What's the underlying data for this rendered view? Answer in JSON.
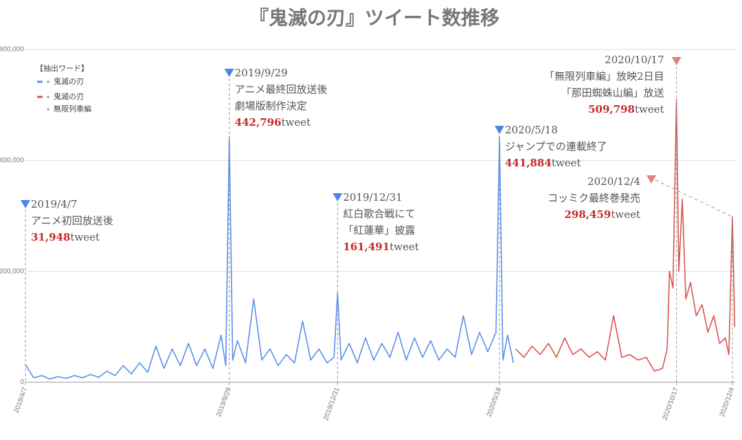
{
  "chart_data": {
    "type": "line",
    "title": "『鬼滅の刃』ツイート数推移",
    "legend_title": "【抽出ワード】",
    "xlim": [
      "2019/4/7",
      "2020/12/4"
    ],
    "xticks": [
      "2019/4/7",
      "2019/9/29",
      "2019/12/31",
      "2020/5/18",
      "2020/10/17",
      "2020/12/4"
    ],
    "ylim": [
      0,
      600000
    ],
    "yticks": [
      0,
      {
        "value": 200000,
        "label": "200,000"
      },
      {
        "value": 400000,
        "label": "400,000"
      },
      {
        "value": 600000,
        "label": "600,000"
      }
    ],
    "grid": true,
    "series": [
      {
        "name": "鬼滅の刃",
        "color": "#5b8ee6",
        "x": [
          "2019/4/7",
          "2019/4/14",
          "2019/4/21",
          "2019/4/28",
          "2019/5/5",
          "2019/5/12",
          "2019/5/19",
          "2019/5/26",
          "2019/6/2",
          "2019/6/9",
          "2019/6/16",
          "2019/6/23",
          "2019/6/30",
          "2019/7/7",
          "2019/7/14",
          "2019/7/21",
          "2019/7/28",
          "2019/8/4",
          "2019/8/11",
          "2019/8/18",
          "2019/8/25",
          "2019/9/1",
          "2019/9/8",
          "2019/9/15",
          "2019/9/22",
          "2019/9/26",
          "2019/9/29",
          "2019/10/2",
          "2019/10/6",
          "2019/10/13",
          "2019/10/20",
          "2019/10/27",
          "2019/11/3",
          "2019/11/10",
          "2019/11/17",
          "2019/11/24",
          "2019/12/1",
          "2019/12/8",
          "2019/12/15",
          "2019/12/22",
          "2019/12/28",
          "2019/12/31",
          "2020/1/3",
          "2020/1/10",
          "2020/1/17",
          "2020/1/24",
          "2020/1/31",
          "2020/2/7",
          "2020/2/14",
          "2020/2/21",
          "2020/2/28",
          "2020/3/6",
          "2020/3/13",
          "2020/3/20",
          "2020/3/27",
          "2020/4/3",
          "2020/4/10",
          "2020/4/17",
          "2020/4/24",
          "2020/5/1",
          "2020/5/8",
          "2020/5/15",
          "2020/5/18",
          "2020/5/21",
          "2020/5/25",
          "2020/5/30"
        ],
        "values": [
          31948,
          8000,
          12000,
          6000,
          10000,
          7000,
          12000,
          8000,
          14000,
          9000,
          20000,
          12000,
          30000,
          15000,
          35000,
          18000,
          65000,
          25000,
          60000,
          30000,
          70000,
          30000,
          60000,
          25000,
          85000,
          30000,
          442796,
          40000,
          75000,
          35000,
          150000,
          40000,
          60000,
          30000,
          50000,
          35000,
          110000,
          40000,
          60000,
          35000,
          45000,
          161491,
          40000,
          70000,
          35000,
          80000,
          40000,
          70000,
          45000,
          90000,
          40000,
          80000,
          45000,
          75000,
          40000,
          60000,
          45000,
          120000,
          50000,
          90000,
          55000,
          90000,
          441884,
          40000,
          85000,
          35000
        ]
      },
      {
        "name": "鬼滅の刃 無限列車編",
        "color": "#d9534f",
        "x": [
          "2020/6/1",
          "2020/6/8",
          "2020/6/15",
          "2020/6/22",
          "2020/6/29",
          "2020/7/6",
          "2020/7/13",
          "2020/7/20",
          "2020/7/27",
          "2020/8/3",
          "2020/8/10",
          "2020/8/17",
          "2020/8/24",
          "2020/8/31",
          "2020/9/7",
          "2020/9/14",
          "2020/9/21",
          "2020/9/28",
          "2020/10/5",
          "2020/10/9",
          "2020/10/11",
          "2020/10/14",
          "2020/10/17",
          "2020/10/19",
          "2020/10/22",
          "2020/10/25",
          "2020/10/29",
          "2020/11/3",
          "2020/11/8",
          "2020/11/13",
          "2020/11/18",
          "2020/11/23",
          "2020/11/28",
          "2020/12/1",
          "2020/12/4",
          "2020/12/6"
        ],
        "values": [
          60000,
          45000,
          65000,
          50000,
          70000,
          45000,
          80000,
          50000,
          60000,
          45000,
          55000,
          40000,
          120000,
          45000,
          50000,
          40000,
          45000,
          20000,
          25000,
          60000,
          200000,
          170000,
          509798,
          200000,
          330000,
          150000,
          180000,
          120000,
          140000,
          90000,
          120000,
          70000,
          80000,
          50000,
          298459,
          100000
        ]
      }
    ],
    "annotations": [
      {
        "date": "2019/4/7",
        "lines": [
          "アニメ初回放送後"
        ],
        "value": 31948,
        "value_label": "31,948",
        "unit": "tweet",
        "color": "#4a86e8"
      },
      {
        "date": "2019/9/29",
        "lines": [
          "アニメ最終回放送後",
          "劇場版制作決定"
        ],
        "value": 442796,
        "value_label": "442,796",
        "unit": "tweet",
        "color": "#4a86e8"
      },
      {
        "date": "2019/12/31",
        "lines": [
          "紅白歌合戦にて",
          "「紅蓮華」披露"
        ],
        "value": 161491,
        "value_label": "161,491",
        "unit": "tweet",
        "color": "#4a86e8"
      },
      {
        "date": "2020/5/18",
        "lines": [
          "ジャンプでの連載終了"
        ],
        "value": 441884,
        "value_label": "441,884",
        "unit": "tweet",
        "color": "#4a86e8"
      },
      {
        "date": "2020/10/17",
        "lines": [
          "「無限列車編」放映2日目",
          "「那田蜘蛛山編」放送"
        ],
        "value": 509798,
        "value_label": "509,798",
        "unit": "tweet",
        "color": "#e08080"
      },
      {
        "date": "2020/12/4",
        "lines": [
          "コッミク最終巻発売"
        ],
        "value": 298459,
        "value_label": "298,459",
        "unit": "tweet",
        "color": "#e08080"
      }
    ]
  }
}
